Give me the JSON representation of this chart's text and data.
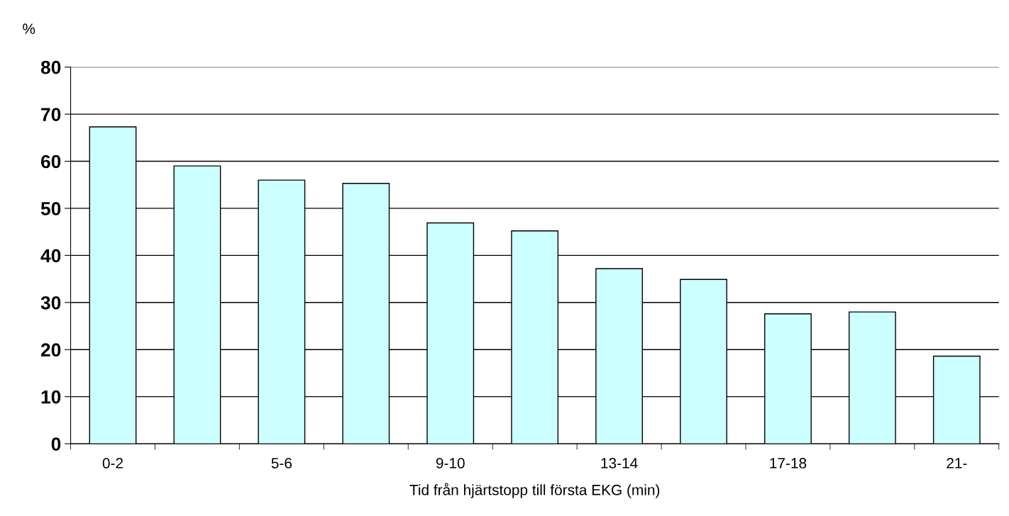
{
  "chart_data": {
    "type": "bar",
    "categories": [
      "0-2",
      null,
      "5-6",
      null,
      "9-10",
      null,
      "13-14",
      null,
      "17-18",
      null,
      "21-"
    ],
    "values": [
      67.3,
      59.0,
      56.0,
      55.3,
      46.9,
      45.2,
      37.2,
      34.9,
      27.6,
      28.0,
      18.6
    ],
    "color": "#ccffff",
    "ylabel": "%",
    "xlabel": "Tid från hjärtstopp till första EKG (min)",
    "ylim": [
      0,
      80
    ],
    "yticks": [
      0,
      10,
      20,
      30,
      40,
      50,
      60,
      70,
      80
    ],
    "grid": "y"
  }
}
